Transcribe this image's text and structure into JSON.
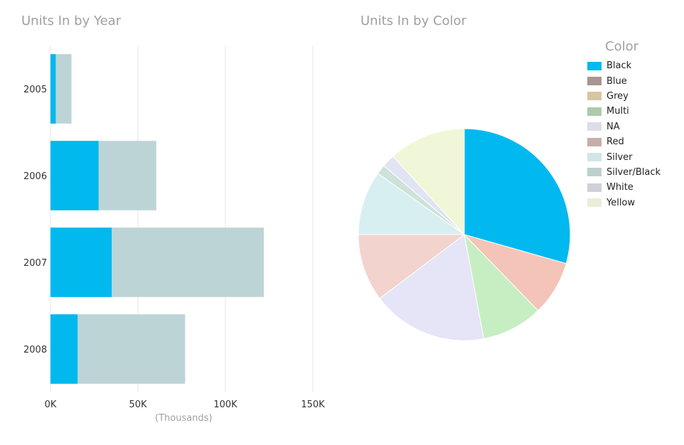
{
  "chart_data": [
    {
      "type": "bar",
      "orientation": "horizontal",
      "stacked": false,
      "overlapping": true,
      "title": "Units In by Year",
      "categories": [
        "2005",
        "2006",
        "2007",
        "2008"
      ],
      "series": [
        {
          "values": [
            12000,
            60500,
            122000,
            77000
          ],
          "color": "#bdd4d6"
        },
        {
          "values": [
            3000,
            27500,
            35000,
            15500
          ],
          "color": "#01b8ef"
        }
      ],
      "x_ticks": [
        "0K",
        "50K",
        "100K",
        "150K"
      ],
      "xlim": [
        0,
        150000
      ],
      "units_label": "(Thousands)",
      "grid": true
    },
    {
      "type": "pie",
      "title": "Units In by Color",
      "legend_title": "Color",
      "legend_position": "right",
      "slices": [
        {
          "label": "Black",
          "value": 30,
          "color": "#01b8ef"
        },
        {
          "label": "Red",
          "value": 8.5,
          "color": "#f4c4b8"
        },
        {
          "label": "Multi",
          "value": 9.5,
          "color": "#c7eec3"
        },
        {
          "label": "NA",
          "value": 18,
          "color": "#e6e4f7"
        },
        {
          "label": "Red",
          "value": 10.5,
          "color": "#f3d3cd"
        },
        {
          "label": "Silver",
          "value": 10,
          "color": "#d8eff1"
        },
        {
          "label": "Silver/Black",
          "value": 1.5,
          "color": "#cde2d8"
        },
        {
          "label": "White",
          "value": 2,
          "color": "#e1e4f2"
        },
        {
          "label": "Yellow",
          "value": 12,
          "color": "#eff7d8"
        }
      ],
      "legend": [
        {
          "label": "Black",
          "color": "#01b8ef"
        },
        {
          "label": "Blue",
          "color": "#a99490"
        },
        {
          "label": "Grey",
          "color": "#d6c6a2"
        },
        {
          "label": "Multi",
          "color": "#aecaac"
        },
        {
          "label": "NA",
          "color": "#dedde6"
        },
        {
          "label": "Red",
          "color": "#c6aeaa"
        },
        {
          "label": "Silver",
          "color": "#d2e5e5"
        },
        {
          "label": "Silver/Black",
          "color": "#bccfcc"
        },
        {
          "label": "White",
          "color": "#cdd2d9"
        },
        {
          "label": "Yellow",
          "color": "#e9eedb"
        }
      ]
    }
  ]
}
